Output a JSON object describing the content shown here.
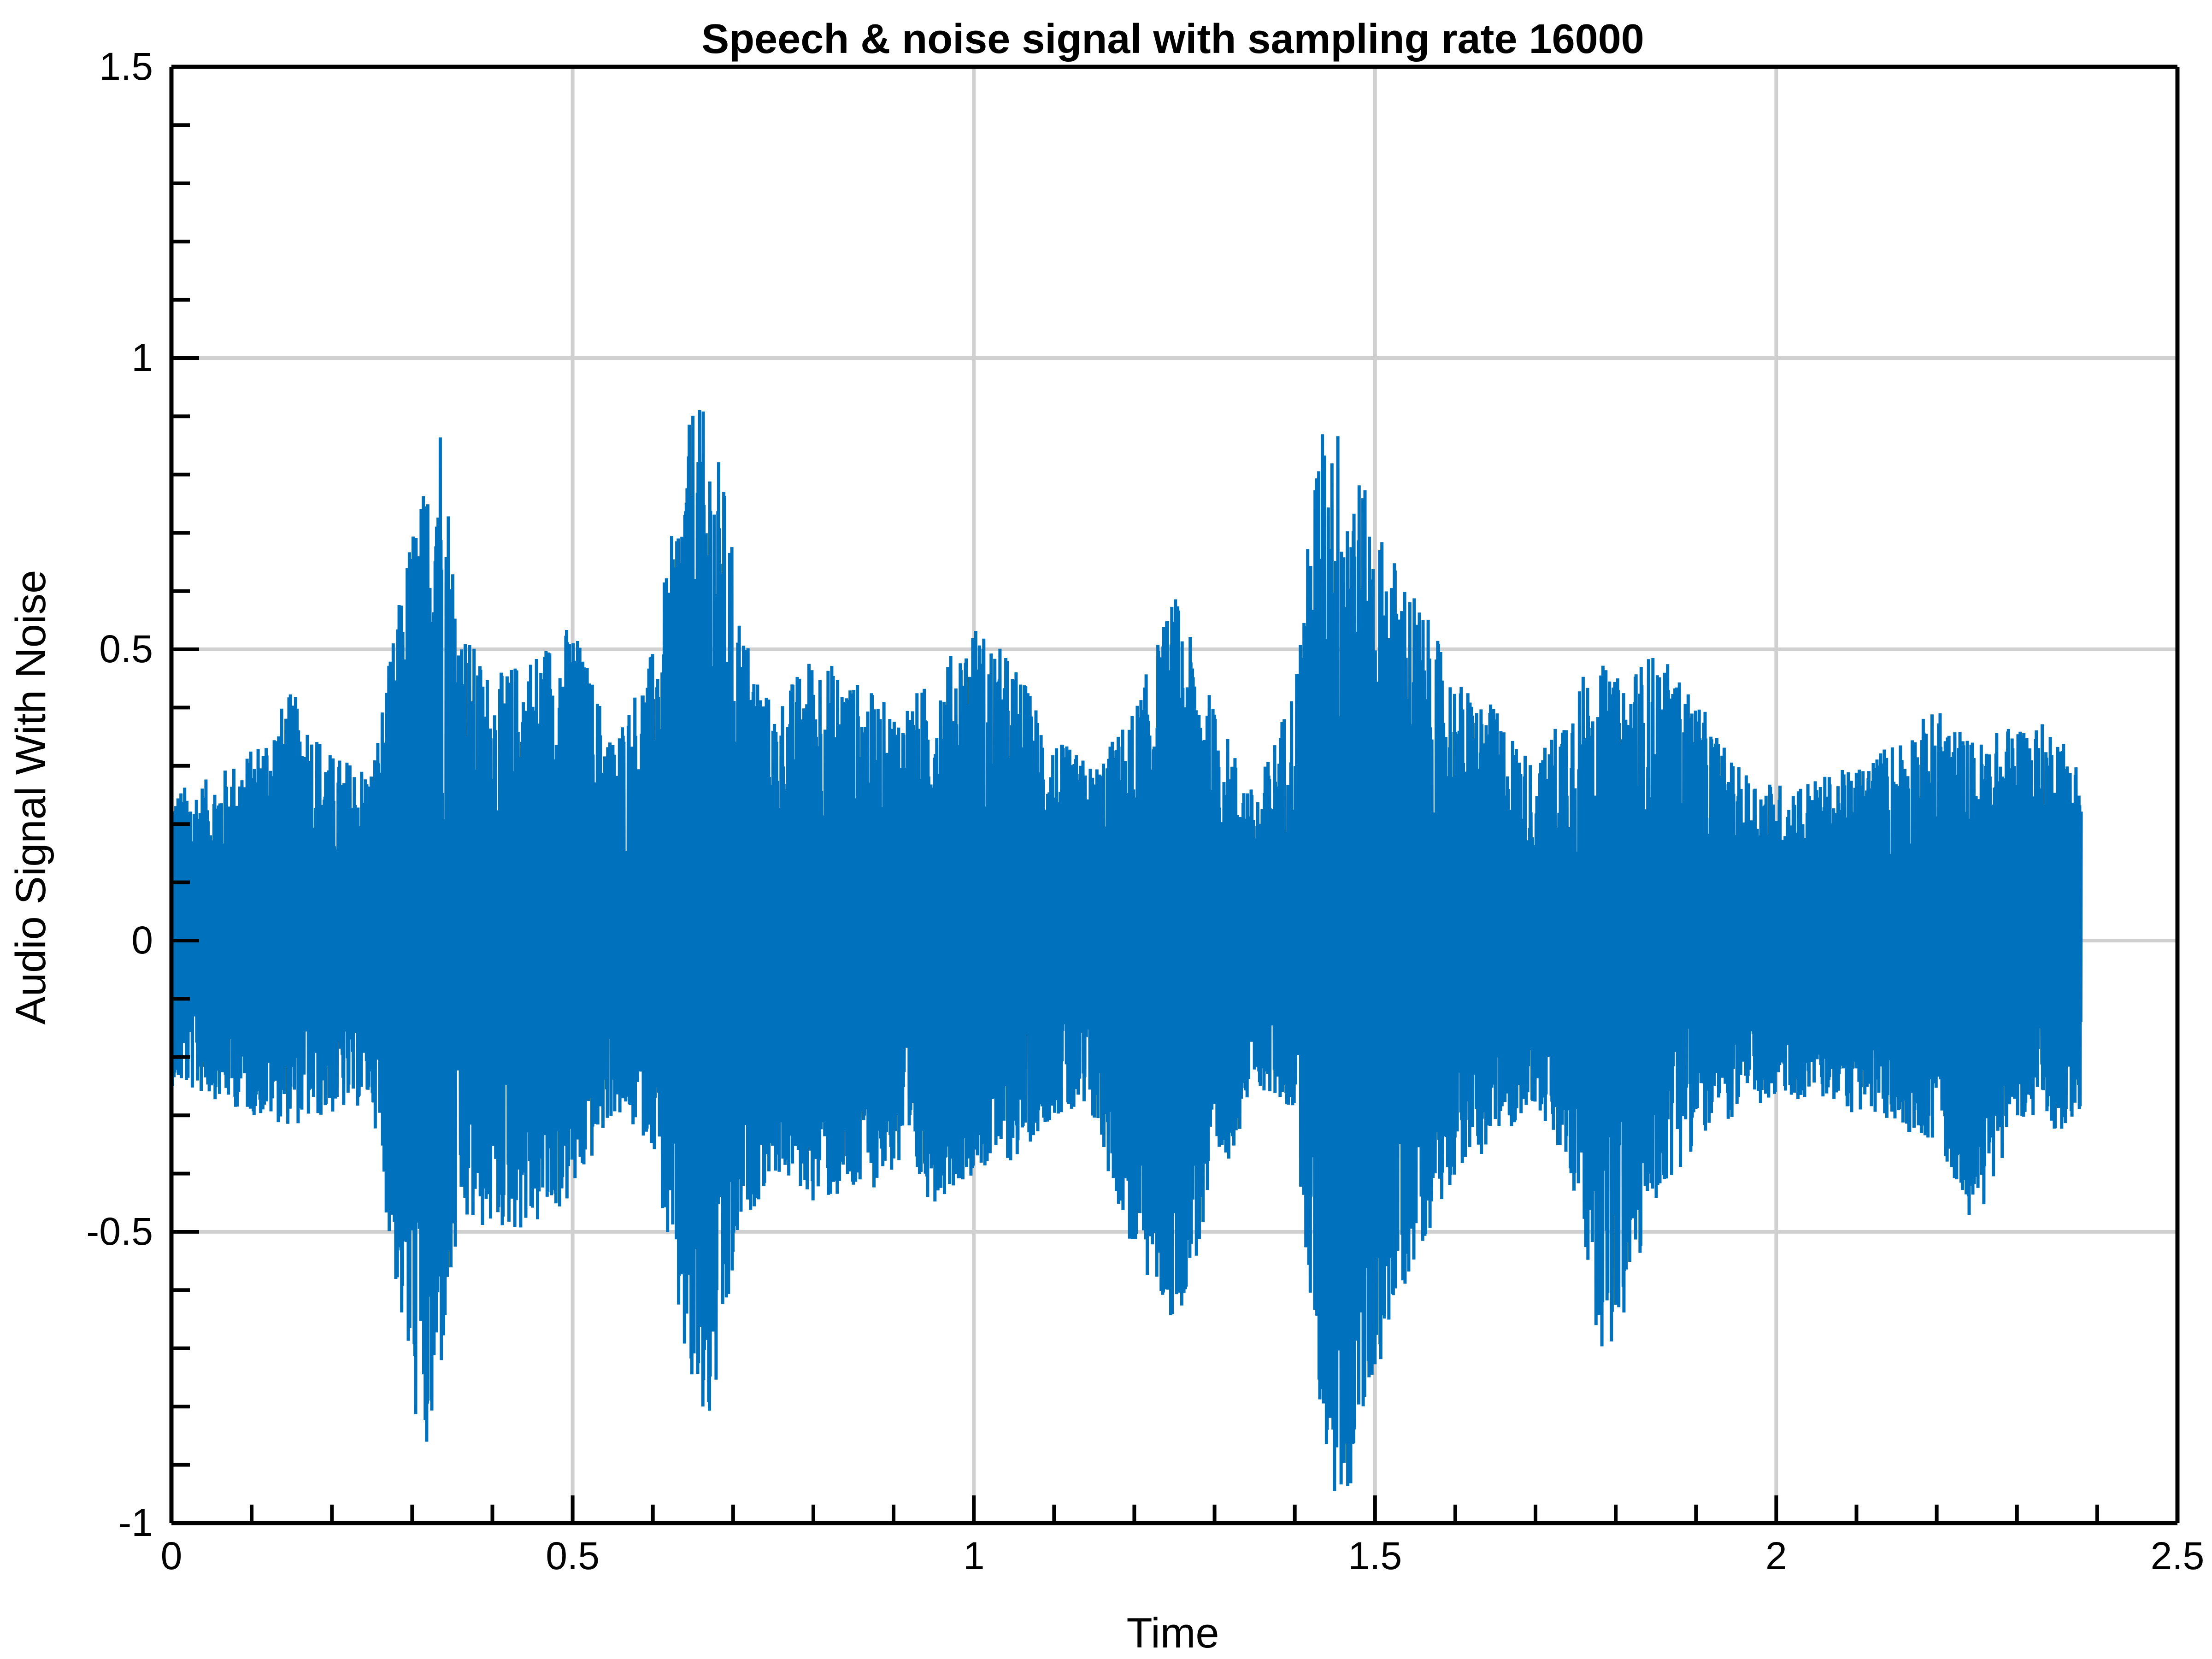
{
  "chart_data": {
    "type": "line",
    "title": "Speech & noise signal with sampling rate 16000",
    "xlabel": "Time",
    "ylabel": "Audio Signal With Noise",
    "xlim": [
      0,
      2.5
    ],
    "ylim": [
      -1,
      1.5
    ],
    "x_ticks": [
      "0",
      "0.5",
      "1",
      "1.5",
      "2",
      "2.5"
    ],
    "y_ticks": [
      "-1",
      "-0.5",
      "0",
      "0.5",
      "1",
      "1.5"
    ],
    "grid": true,
    "series_color": "#0072bd",
    "duration": 2.38,
    "envelope": {
      "t": [
        0,
        0.05,
        0.1,
        0.15,
        0.2,
        0.25,
        0.28,
        0.3,
        0.32,
        0.33,
        0.34,
        0.36,
        0.4,
        0.45,
        0.5,
        0.55,
        0.6,
        0.63,
        0.65,
        0.67,
        0.69,
        0.71,
        0.75,
        0.8,
        0.85,
        0.9,
        0.95,
        1.0,
        1.05,
        1.1,
        1.15,
        1.2,
        1.25,
        1.3,
        1.35,
        1.4,
        1.43,
        1.45,
        1.47,
        1.5,
        1.55,
        1.6,
        1.65,
        1.7,
        1.75,
        1.78,
        1.8,
        1.85,
        1.9,
        1.95,
        2.0,
        2.05,
        2.1,
        2.15,
        2.2,
        2.25,
        2.3,
        2.35,
        2.38
      ],
      "upper": [
        0.26,
        0.28,
        0.33,
        0.43,
        0.32,
        0.3,
        0.55,
        0.72,
        0.8,
        1.0,
        0.85,
        0.55,
        0.45,
        0.5,
        0.55,
        0.35,
        0.5,
        0.75,
        0.93,
        0.9,
        0.78,
        0.55,
        0.4,
        0.5,
        0.45,
        0.4,
        0.45,
        0.55,
        0.48,
        0.35,
        0.3,
        0.4,
        0.6,
        0.4,
        0.25,
        0.45,
        0.88,
        0.9,
        0.85,
        0.72,
        0.6,
        0.45,
        0.4,
        0.3,
        0.45,
        0.48,
        0.45,
        0.5,
        0.42,
        0.3,
        0.27,
        0.28,
        0.3,
        0.35,
        0.4,
        0.34,
        0.38,
        0.37,
        0.3
      ],
      "lower": [
        -0.25,
        -0.27,
        -0.3,
        -0.32,
        -0.3,
        -0.28,
        -0.6,
        -0.8,
        -0.93,
        -0.83,
        -0.7,
        -0.5,
        -0.5,
        -0.5,
        -0.45,
        -0.3,
        -0.35,
        -0.65,
        -0.82,
        -0.86,
        -0.7,
        -0.5,
        -0.4,
        -0.45,
        -0.45,
        -0.4,
        -0.45,
        -0.4,
        -0.38,
        -0.3,
        -0.32,
        -0.55,
        -0.67,
        -0.45,
        -0.25,
        -0.3,
        -0.8,
        -0.98,
        -0.95,
        -0.75,
        -0.55,
        -0.4,
        -0.35,
        -0.28,
        -0.45,
        -0.7,
        -0.71,
        -0.45,
        -0.35,
        -0.3,
        -0.28,
        -0.27,
        -0.3,
        -0.32,
        -0.35,
        -0.5,
        -0.3,
        -0.33,
        -0.3
      ]
    }
  }
}
